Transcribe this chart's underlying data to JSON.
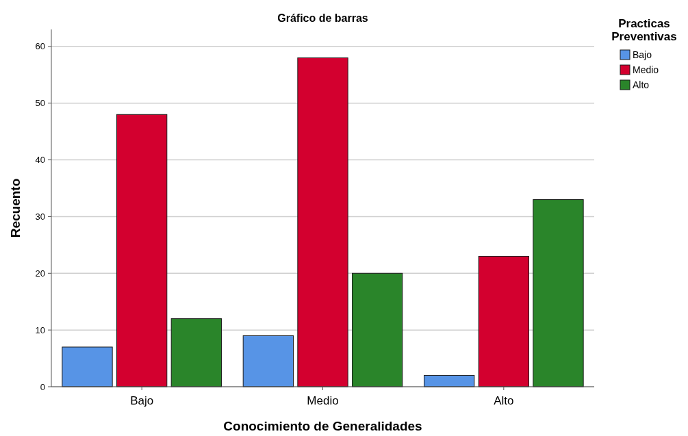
{
  "chart_data": {
    "type": "bar",
    "title": "Gráfico de barras",
    "xlabel": "Conocimiento de Generalidades",
    "ylabel": "Recuento",
    "legend_title": "Practicas Preventivas",
    "categories": [
      "Bajo",
      "Medio",
      "Alto"
    ],
    "series": [
      {
        "name": "Bajo",
        "color": "#5794e6",
        "values": [
          7,
          9,
          2
        ]
      },
      {
        "name": "Medio",
        "color": "#d3002f",
        "values": [
          48,
          58,
          23
        ]
      },
      {
        "name": "Alto",
        "color": "#2a852a",
        "values": [
          12,
          20,
          33
        ]
      }
    ],
    "ylim": [
      0,
      63
    ],
    "yticks": [
      0,
      10,
      20,
      30,
      40,
      50,
      60
    ],
    "grid": "y",
    "legend": "top right"
  }
}
